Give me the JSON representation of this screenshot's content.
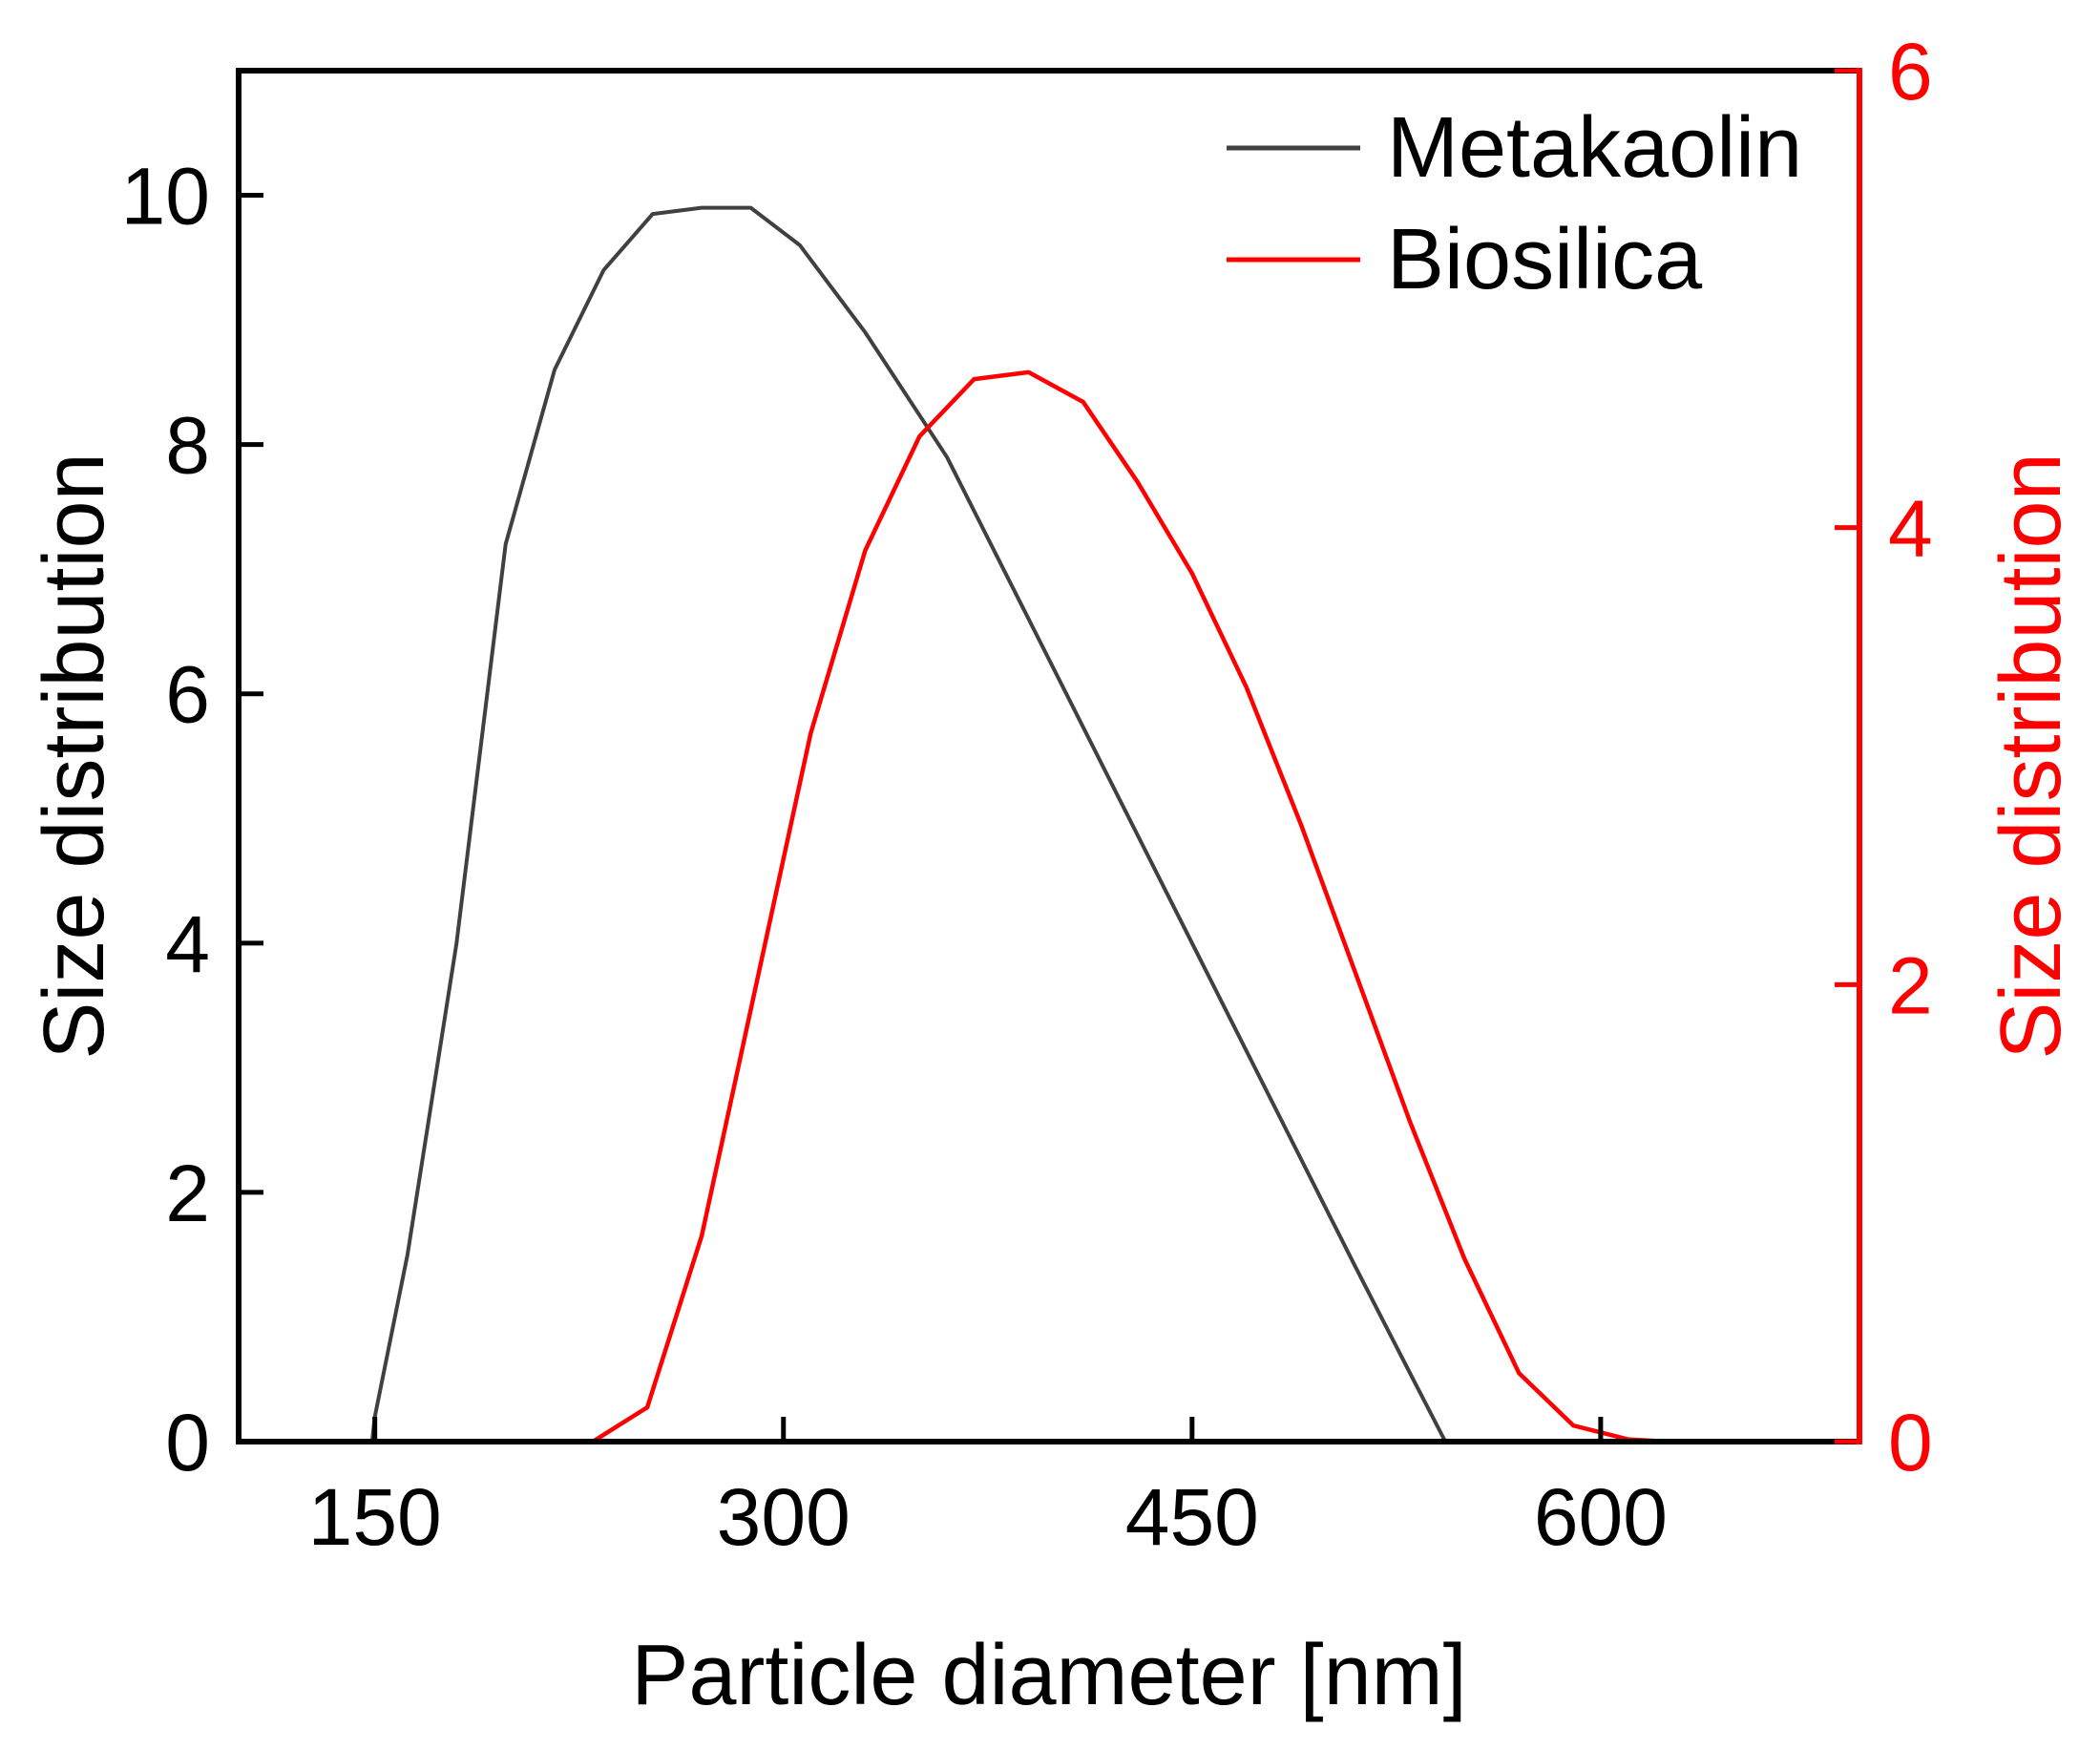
{
  "chart_data": {
    "type": "line",
    "title": "",
    "xlabel": "Particle diameter [nm]",
    "ylabel_left": "Size distribution",
    "ylabel_right": "Size distribution",
    "xlim": [
      100,
      695
    ],
    "ylim_left": [
      0,
      11
    ],
    "ylim_right": [
      0,
      6
    ],
    "x_ticks": [
      150,
      300,
      450,
      600
    ],
    "x_tick_labels": [
      "150",
      "300",
      "450",
      "600"
    ],
    "y_left_ticks": [
      0,
      2,
      4,
      6,
      8,
      10
    ],
    "y_left_tick_labels": [
      "0",
      "2",
      "4",
      "6",
      "8",
      "10"
    ],
    "y_right_ticks": [
      0,
      2,
      4,
      6
    ],
    "y_right_tick_labels": [
      "0",
      "2",
      "4",
      "6"
    ],
    "grid": false,
    "legend_position": "top-right",
    "colors": {
      "axis_left": "#000000",
      "axis_right": "#ff0000",
      "metakaolin": "#404040",
      "biosilica": "#ff0000"
    },
    "series": [
      {
        "name": "Metakaolin",
        "axis": "left",
        "x": [
          100,
          149,
          150,
          162,
          180,
          198,
          216,
          234,
          252,
          270,
          288,
          306,
          330,
          360,
          390,
          420,
          450,
          480,
          510,
          530,
          543,
          550,
          600,
          695
        ],
        "y": [
          0,
          0,
          0.2,
          1.5,
          4.0,
          7.2,
          8.6,
          9.4,
          9.85,
          9.9,
          9.9,
          9.6,
          8.9,
          7.9,
          6.6,
          5.3,
          4.0,
          2.7,
          1.4,
          0.55,
          0,
          0,
          0,
          0
        ]
      },
      {
        "name": "Biosilica",
        "axis": "right",
        "x": [
          100,
          230,
          250,
          270,
          290,
          310,
          330,
          350,
          370,
          390,
          410,
          430,
          450,
          470,
          490,
          510,
          530,
          550,
          570,
          590,
          610,
          625,
          695
        ],
        "y": [
          0,
          0,
          0.15,
          0.9,
          2.0,
          3.1,
          3.9,
          4.4,
          4.65,
          4.68,
          4.55,
          4.2,
          3.8,
          3.3,
          2.7,
          2.05,
          1.4,
          0.8,
          0.3,
          0.07,
          0.01,
          0,
          0
        ]
      }
    ]
  }
}
